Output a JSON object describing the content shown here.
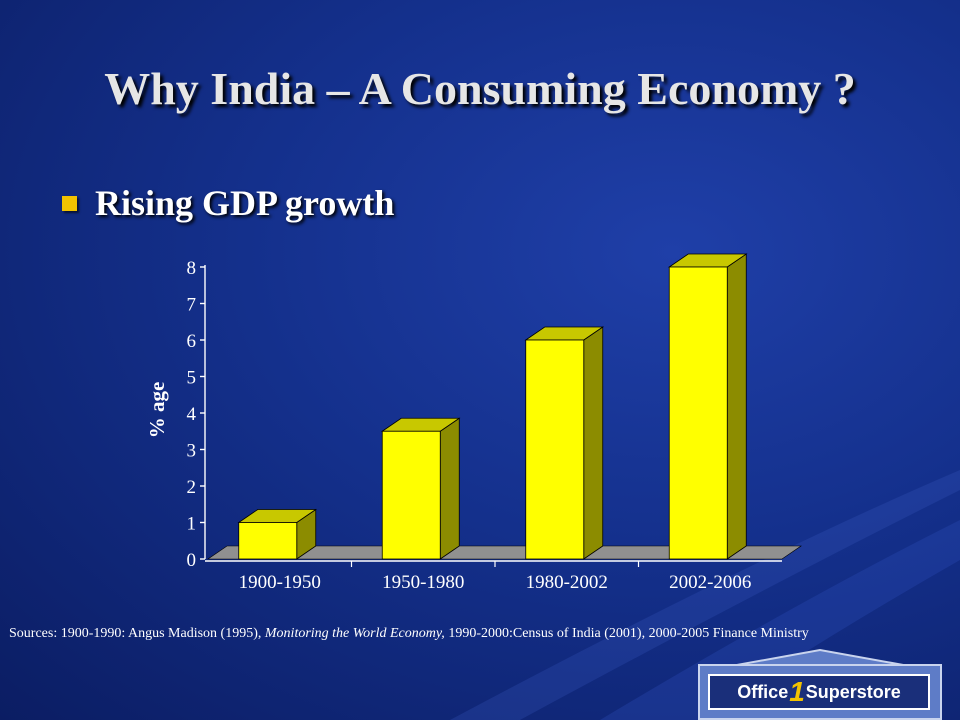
{
  "slide": {
    "title": "Why India – A Consuming Economy ?",
    "bullet": "Rising GDP growth",
    "sources_part1": "Sources: 1900-1990: Angus Madison (1995), ",
    "sources_italic": "Monitoring the World Economy,",
    "sources_part2": " 1990-2000:Census of India (2001), 2000-2005 Finance Ministry"
  },
  "logo": {
    "text_before": "Office",
    "number": "1",
    "text_after": "Superstore"
  },
  "colors": {
    "bar_front": "#ffff00",
    "bar_side": "#8c8c00",
    "bar_top": "#c8c800",
    "floor": "#909090",
    "accent": "#f2c200"
  },
  "chart_data": {
    "type": "bar",
    "categories": [
      "1900-1950",
      "1950-1980",
      "1980-2002",
      "2002-2006"
    ],
    "values": [
      1,
      3.5,
      6,
      8
    ],
    "title": "",
    "xlabel": "",
    "ylabel": "% age",
    "ylim": [
      0,
      8
    ],
    "yticks": [
      "0",
      "1",
      "2",
      "3",
      "4",
      "5",
      "6",
      "7",
      "8"
    ],
    "grid": false,
    "style": "3d"
  }
}
